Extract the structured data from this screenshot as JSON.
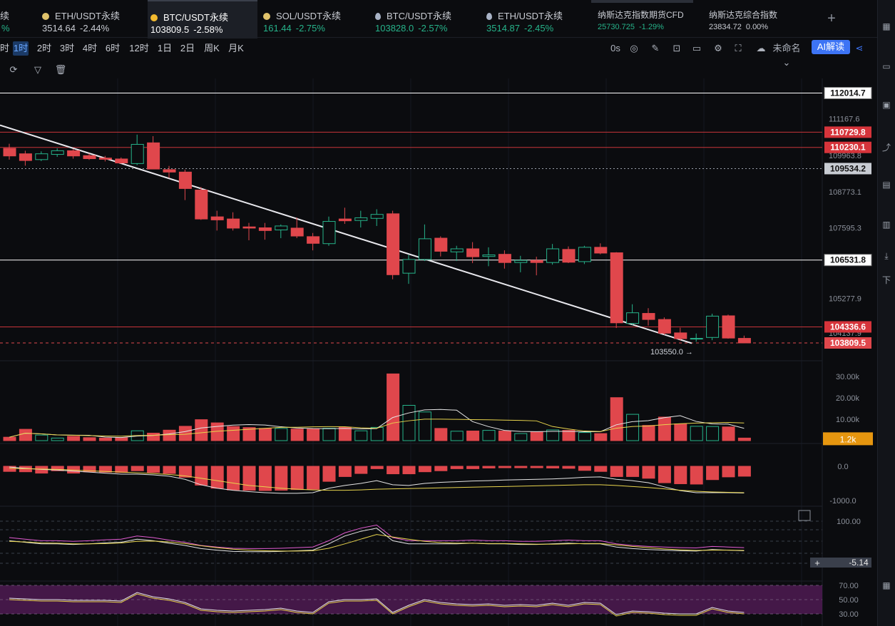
{
  "tickers": [
    {
      "name": "续",
      "price": "",
      "change": "%",
      "color": "#26b38a",
      "icon": "",
      "style": "partial"
    },
    {
      "name": "ETH/USDT永续",
      "price": "3514.64",
      "change": "-2.44%",
      "color": "#c9ccd3",
      "icon": "gold-coin-icon"
    },
    {
      "name": "BTC/USDT永续",
      "price": "103809.5",
      "change": "-2.58%",
      "color": "#c9ccd3",
      "icon": "bitcoin-icon",
      "active": true
    },
    {
      "name": "SOL/USDT永续",
      "price": "161.44",
      "change": "-2.75%",
      "color": "#26b38a",
      "icon": "gold-coin-icon"
    },
    {
      "name": "BTC/USDT永续",
      "price": "103828.0",
      "change": "-2.57%",
      "color": "#26b38a",
      "icon": "drop-icon"
    },
    {
      "name": "ETH/USDT永续",
      "price": "3514.87",
      "change": "-2.45%",
      "color": "#26b38a",
      "icon": "drop-icon"
    },
    {
      "name": "纳斯达克指数期货CFD",
      "price": "25730.725",
      "change": "-1.29%",
      "color": "#26b38a",
      "icon": "",
      "style": "small"
    },
    {
      "name": "纳斯达克综合指数",
      "price": "23834.72",
      "change": "0.00%",
      "color": "#c9ccd3",
      "icon": "",
      "style": "small"
    }
  ],
  "timeframes": [
    "时",
    "1时",
    "2时",
    "3时",
    "4时",
    "6时",
    "12时",
    "1日",
    "2日",
    "周K",
    "月K"
  ],
  "active_timeframe": "1时",
  "toolbar": {
    "countdown": "0s",
    "layout_name": "未命名",
    "ai_label": "AI解读"
  },
  "right_panel": {
    "label": "下"
  },
  "colors": {
    "up": "#26b38a",
    "down": "#e0474c",
    "ma_white": "#e6e6e6",
    "ma_yellow": "#e8d44d",
    "rsi_pink": "#e05bd0",
    "band_purple": "#4a1a4f",
    "volume_badge": "#e6960f"
  },
  "price_axis": {
    "ticks": [
      "112014.7",
      "111167.6",
      "109963.8",
      "108773.1",
      "107595.3",
      "106531.8",
      "105277.9",
      "104137.9"
    ],
    "hlines": [
      {
        "label": "112014.7",
        "price": 112014.7,
        "kind": "white"
      },
      {
        "label": "110729.8",
        "price": 110729.8,
        "kind": "red"
      },
      {
        "label": "110230.1",
        "price": 110230.1,
        "kind": "red"
      },
      {
        "label": "109534.2",
        "price": 109534.2,
        "kind": "dotted"
      },
      {
        "label": "106531.8",
        "price": 106531.8,
        "kind": "white"
      },
      {
        "label": "104336.6",
        "price": 104336.6,
        "kind": "red"
      },
      {
        "label": "103809.5",
        "price": 103809.5,
        "kind": "current"
      }
    ],
    "low_marker": "103550.0"
  },
  "volume_axis": {
    "ticks": [
      "30.00k",
      "20.00k",
      "10.00k"
    ],
    "badge": "1.2k"
  },
  "macd_axis": {
    "ticks": [
      "0.0",
      "-1000.0"
    ]
  },
  "kdj_axis": {
    "ticks": [
      "100.00"
    ],
    "badge": "-5.14"
  },
  "rsi_axis": {
    "ticks": [
      "70.00",
      "50.00",
      "30.00"
    ]
  },
  "chart_data": {
    "type": "candlestick",
    "candles": [
      [
        110200,
        110350,
        109830,
        109950,
        1.6
      ],
      [
        110020,
        110120,
        109630,
        109800,
        5.3
      ],
      [
        109830,
        110100,
        109780,
        110020,
        2.6
      ],
      [
        110000,
        110200,
        109920,
        110120,
        1.2
      ],
      [
        110120,
        110180,
        109860,
        109950,
        2.0
      ],
      [
        109960,
        110030,
        109820,
        109860,
        1.4
      ],
      [
        109880,
        109950,
        109770,
        109840,
        1.2
      ],
      [
        109850,
        109900,
        109700,
        109720,
        1.4
      ],
      [
        109700,
        110650,
        109650,
        110330,
        4.6
      ],
      [
        110380,
        110600,
        109540,
        109520,
        3.5
      ],
      [
        109500,
        109620,
        109230,
        109420,
        4.9
      ],
      [
        109420,
        109500,
        108500,
        108880,
        6.7
      ],
      [
        108830,
        108930,
        107850,
        107880,
        9.8
      ],
      [
        107950,
        108150,
        107500,
        107850,
        8.3
      ],
      [
        107880,
        108100,
        107500,
        107580,
        6.6
      ],
      [
        107620,
        107750,
        107180,
        107580,
        6.1
      ],
      [
        107590,
        107750,
        107200,
        107500,
        5.7
      ],
      [
        107520,
        107700,
        107250,
        107650,
        5.7
      ],
      [
        107580,
        107930,
        107250,
        107320,
        5.4
      ],
      [
        107300,
        107420,
        106850,
        107080,
        5.4
      ],
      [
        107070,
        107960,
        107000,
        107800,
        5.8
      ],
      [
        107880,
        108250,
        107720,
        107820,
        6.2
      ],
      [
        107830,
        108150,
        107600,
        107920,
        4.6
      ],
      [
        107900,
        108200,
        107650,
        108030,
        6.2
      ],
      [
        108050,
        108150,
        105900,
        106050,
        31.2
      ],
      [
        106100,
        106700,
        105750,
        106550,
        16.5
      ],
      [
        106550,
        107700,
        106500,
        107230,
        13.4
      ],
      [
        107250,
        107310,
        106650,
        106820,
        5.7
      ],
      [
        106800,
        107000,
        106500,
        106900,
        4.4
      ],
      [
        106900,
        107120,
        106430,
        106640,
        4.5
      ],
      [
        106650,
        106950,
        106330,
        106700,
        4.8
      ],
      [
        106720,
        106850,
        106250,
        106450,
        4.5
      ],
      [
        106450,
        106670,
        106130,
        106520,
        3.3
      ],
      [
        106520,
        106640,
        106030,
        106450,
        4.0
      ],
      [
        106450,
        107060,
        106380,
        106900,
        5.0
      ],
      [
        106880,
        106980,
        106430,
        106460,
        4.8
      ],
      [
        106480,
        107000,
        106400,
        106950,
        3.8
      ],
      [
        106950,
        107080,
        106720,
        106760,
        3.3
      ],
      [
        106770,
        106790,
        104300,
        104470,
        20.1
      ],
      [
        104450,
        105080,
        104400,
        104800,
        12.3
      ],
      [
        104780,
        104950,
        104380,
        104580,
        7.1
      ],
      [
        104580,
        104650,
        104080,
        104130,
        11.0
      ],
      [
        104140,
        104310,
        103880,
        103950,
        7.8
      ],
      [
        103950,
        104120,
        103850,
        103960,
        6.7
      ],
      [
        103990,
        104770,
        103900,
        104690,
        6.6
      ],
      [
        104700,
        104740,
        103950,
        103970,
        6.4
      ],
      [
        103960,
        104050,
        103800,
        103810,
        1.2
      ]
    ],
    "macd_hist": [
      -150,
      -160,
      -200,
      -130,
      -200,
      -160,
      -170,
      -180,
      -130,
      -180,
      -210,
      -320,
      -550,
      -640,
      -690,
      -700,
      -710,
      -700,
      -680,
      -670,
      -440,
      -300,
      -210,
      -70,
      -220,
      -220,
      -160,
      -130,
      -70,
      -70,
      -50,
      -40,
      -30,
      -40,
      -50,
      -60,
      -120,
      -150,
      -300,
      -300,
      -350,
      -480,
      -510,
      -520,
      -390,
      -310,
      -290
    ],
    "macd_dif": [
      -20,
      -60,
      -90,
      -110,
      -140,
      -170,
      -200,
      -230,
      -230,
      -250,
      -290,
      -380,
      -540,
      -640,
      -700,
      -740,
      -770,
      -790,
      -790,
      -770,
      -640,
      -560,
      -500,
      -420,
      -540,
      -560,
      -500,
      -470,
      -450,
      -430,
      -420,
      -400,
      -390,
      -380,
      -370,
      -350,
      -320,
      -310,
      -380,
      -420,
      -480,
      -600,
      -710,
      -770,
      -770,
      -770,
      -780
    ],
    "macd_dea": [
      -60,
      -70,
      -80,
      -90,
      -110,
      -130,
      -150,
      -170,
      -190,
      -210,
      -240,
      -280,
      -350,
      -420,
      -490,
      -560,
      -600,
      -640,
      -670,
      -690,
      -700,
      -700,
      -690,
      -670,
      -660,
      -650,
      -640,
      -630,
      -620,
      -610,
      -600,
      -590,
      -580,
      -570,
      -560,
      -550,
      -540,
      -540,
      -560,
      -590,
      -620,
      -660,
      -700,
      -730,
      -750,
      -760,
      -770
    ],
    "kdj_k": [
      40,
      35,
      30,
      30,
      28,
      30,
      33,
      35,
      45,
      40,
      32,
      25,
      15,
      10,
      6,
      5,
      5,
      6,
      8,
      10,
      30,
      55,
      70,
      80,
      40,
      30,
      30,
      30,
      30,
      32,
      30,
      30,
      28,
      28,
      30,
      32,
      30,
      30,
      20,
      15,
      12,
      10,
      8,
      7,
      12,
      10,
      8
    ],
    "kdj_d": [
      38,
      36,
      33,
      32,
      30,
      30,
      31,
      33,
      38,
      39,
      36,
      31,
      24,
      18,
      13,
      10,
      8,
      7,
      7,
      8,
      16,
      30,
      45,
      60,
      52,
      45,
      38,
      34,
      32,
      32,
      31,
      31,
      30,
      29,
      29,
      30,
      31,
      31,
      27,
      22,
      18,
      14,
      11,
      9,
      10,
      10,
      9
    ],
    "rsi": [
      50,
      49,
      48,
      48,
      47,
      47,
      47,
      46,
      58,
      52,
      49,
      44,
      35,
      33,
      32,
      33,
      34,
      36,
      32,
      30,
      45,
      48,
      48,
      49,
      30,
      40,
      48,
      44,
      42,
      41,
      42,
      40,
      41,
      40,
      43,
      40,
      44,
      43,
      27,
      32,
      31,
      29,
      28,
      28,
      37,
      32,
      30
    ]
  }
}
